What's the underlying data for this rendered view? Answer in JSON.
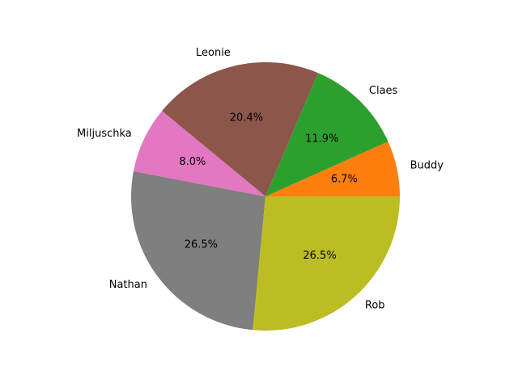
{
  "chart_data": {
    "type": "pie",
    "start_angle_deg": 0,
    "direction": "counterclockwise",
    "slices": [
      {
        "label": "Buddy",
        "pct_label": "6.7%",
        "value": 6.7,
        "color": "#ff7f0e"
      },
      {
        "label": "Claes",
        "pct_label": "11.9%",
        "value": 11.9,
        "color": "#2ca02c"
      },
      {
        "label": "Leonie",
        "pct_label": "20.4%",
        "value": 20.4,
        "color": "#8c564b"
      },
      {
        "label": "Miljuschka",
        "pct_label": "8.0%",
        "value": 8.0,
        "color": "#e377c2"
      },
      {
        "label": "Nathan",
        "pct_label": "26.5%",
        "value": 26.5,
        "color": "#7f7f7f"
      },
      {
        "label": "Rob",
        "pct_label": "26.5%",
        "value": 26.5,
        "color": "#bcbd22"
      }
    ]
  }
}
